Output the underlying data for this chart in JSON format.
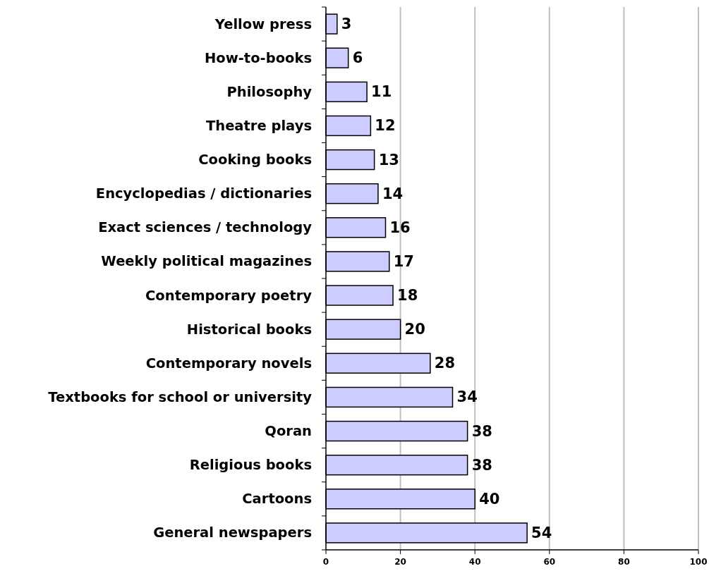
{
  "chart_data": {
    "type": "bar",
    "orientation": "horizontal",
    "categories": [
      "Yellow press",
      "How-to-books",
      "Philosophy",
      "Theatre plays",
      "Cooking books",
      "Encyclopedias / dictionaries",
      "Exact sciences / technology",
      "Weekly political magazines",
      "Contemporary poetry",
      "Historical books",
      "Contemporary novels",
      "Textbooks for school or university",
      "Qoran",
      "Religious books",
      "Cartoons",
      "General newspapers"
    ],
    "values": [
      3,
      6,
      11,
      12,
      13,
      14,
      16,
      17,
      18,
      20,
      28,
      34,
      38,
      38,
      40,
      54
    ],
    "color": "#ccccff",
    "xlim": [
      0,
      100
    ],
    "xticks": [
      0,
      20,
      40,
      60,
      80,
      100
    ],
    "grid": "x",
    "data_labels": true
  }
}
